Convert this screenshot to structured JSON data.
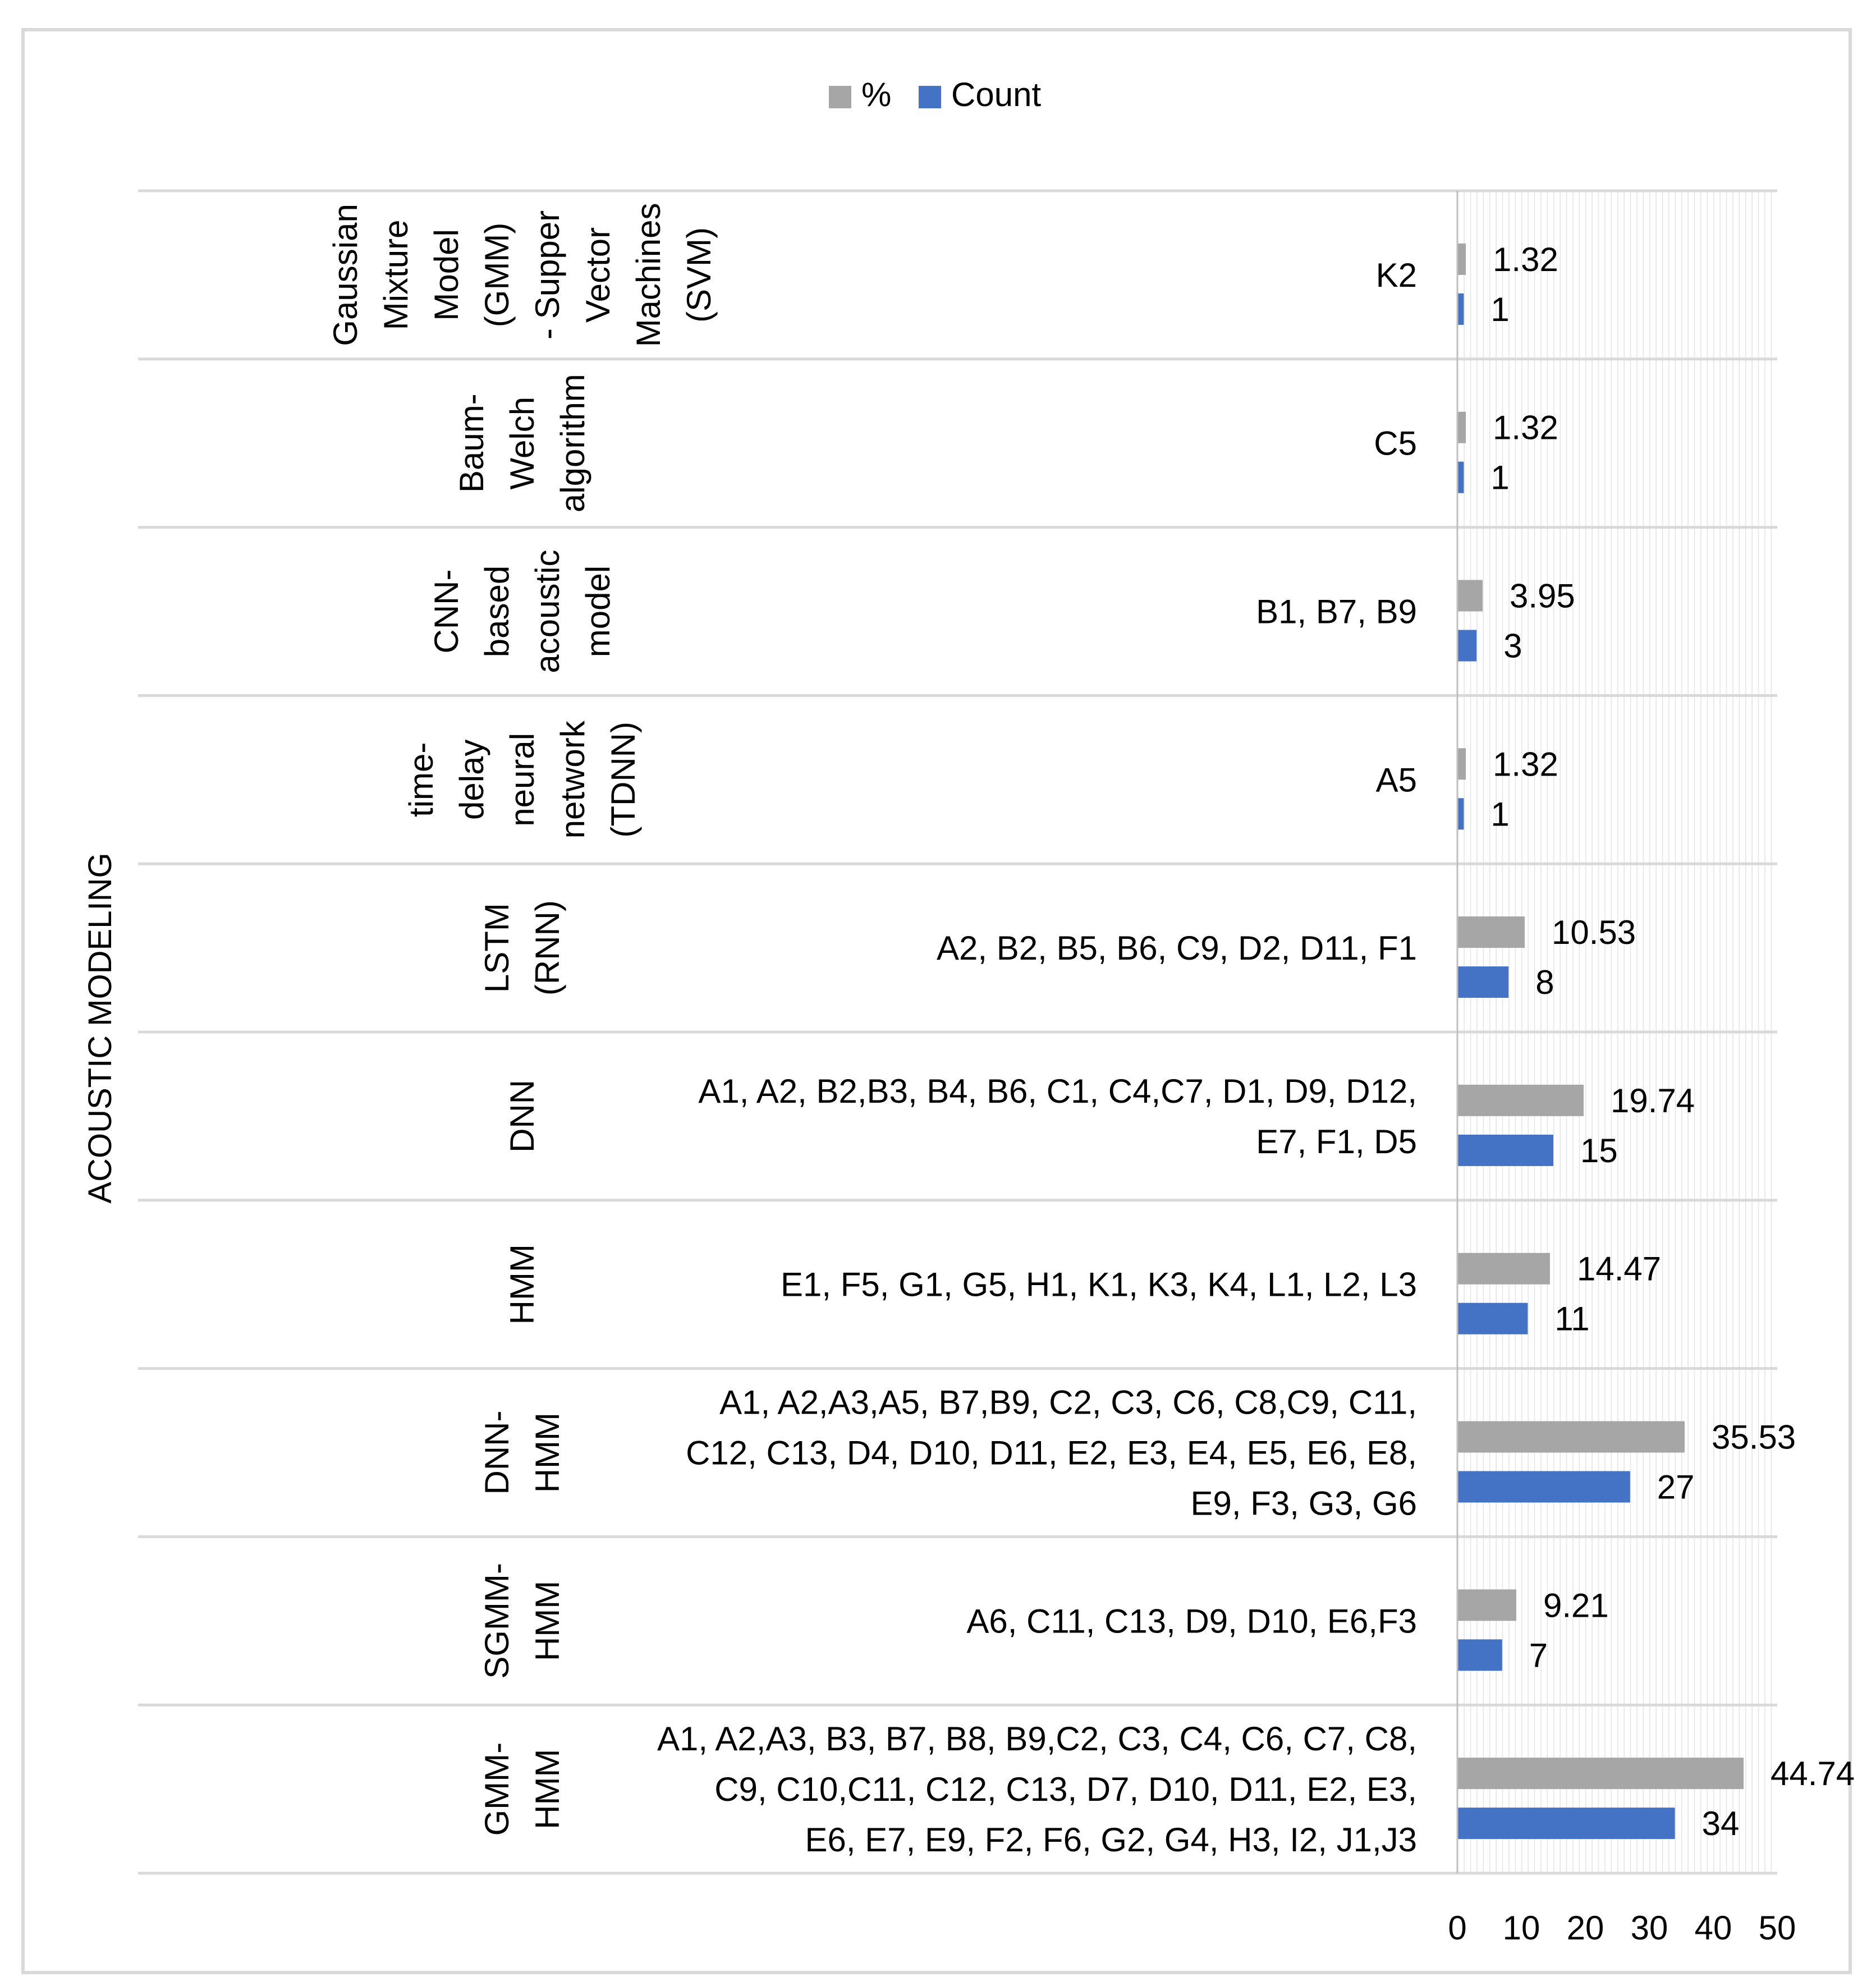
{
  "chart_data": {
    "type": "bar",
    "orientation": "horizontal",
    "title": "",
    "ylabel": "ACOUSTIC MODELING",
    "xlabel": "",
    "xlim": [
      0,
      50
    ],
    "x_ticks": [
      "0",
      "10",
      "20",
      "30",
      "40",
      "50"
    ],
    "legend": {
      "position": "top-center",
      "entries": [
        "%",
        "Count"
      ]
    },
    "grid": "vertical minor lines",
    "categories": [
      {
        "model_lines": [
          "Gaussian",
          "Mixture",
          "Model",
          "(GMM)",
          "- Supper",
          "Vector",
          "Machines",
          "(SVM)"
        ],
        "refs": [
          "K2"
        ],
        "percent": 1.32,
        "percent_label": "1.32",
        "count": 1,
        "count_label": "1"
      },
      {
        "model_lines": [
          "Baum-",
          "Welch",
          "algorithm"
        ],
        "refs": [
          "C5"
        ],
        "percent": 1.32,
        "percent_label": "1.32",
        "count": 1,
        "count_label": "1"
      },
      {
        "model_lines": [
          "CNN-",
          "based",
          "acoustic",
          "model"
        ],
        "refs": [
          "B1, B7, B9"
        ],
        "percent": 3.95,
        "percent_label": "3.95",
        "count": 3,
        "count_label": "3"
      },
      {
        "model_lines": [
          "time-",
          "delay",
          "neural",
          "network",
          "(TDNN)"
        ],
        "refs": [
          "A5"
        ],
        "percent": 1.32,
        "percent_label": "1.32",
        "count": 1,
        "count_label": "1"
      },
      {
        "model_lines": [
          "LSTM",
          "(RNN)"
        ],
        "refs": [
          "A2, B2, B5, B6, C9, D2, D11, F1"
        ],
        "percent": 10.53,
        "percent_label": "10.53",
        "count": 8,
        "count_label": "8"
      },
      {
        "model_lines": [
          "DNN"
        ],
        "refs": [
          "A1, A2, B2,B3, B4, B6, C1, C4,C7, D1, D9, D12,",
          "E7, F1, D5"
        ],
        "percent": 19.74,
        "percent_label": "19.74",
        "count": 15,
        "count_label": "15"
      },
      {
        "model_lines": [
          "HMM"
        ],
        "refs": [
          "E1, F5, G1, G5, H1, K1, K3, K4, L1, L2, L3"
        ],
        "percent": 14.47,
        "percent_label": "14.47",
        "count": 11,
        "count_label": "11"
      },
      {
        "model_lines": [
          "DNN-",
          "HMM"
        ],
        "refs": [
          "A1, A2,A3,A5, B7,B9, C2, C3, C6, C8,C9, C11,",
          "C12, C13, D4, D10, D11, E2, E3, E4, E5, E6, E8,",
          "E9, F3, G3, G6"
        ],
        "percent": 35.53,
        "percent_label": "35.53",
        "count": 27,
        "count_label": "27"
      },
      {
        "model_lines": [
          "SGMM-",
          "HMM"
        ],
        "refs": [
          "A6, C11, C13, D9, D10, E6,F3"
        ],
        "percent": 9.21,
        "percent_label": "9.21",
        "count": 7,
        "count_label": "7"
      },
      {
        "model_lines": [
          "GMM-",
          "HMM"
        ],
        "refs": [
          "A1, A2,A3, B3, B7, B8, B9,C2, C3, C4, C6, C7, C8,",
          "C9, C10,C11, C12, C13, D7, D10, D11, E2, E3,",
          "E6, E7, E9, F2, F6, G2, G4, H3, I2, J1,J3"
        ],
        "percent": 44.74,
        "percent_label": "44.74",
        "count": 34,
        "count_label": "34"
      }
    ]
  },
  "colors": {
    "percent": "#a6a6a6",
    "count": "#4472c4",
    "grid": "#d9d9d9",
    "border": "#d9d9d9",
    "text": "#000000"
  }
}
